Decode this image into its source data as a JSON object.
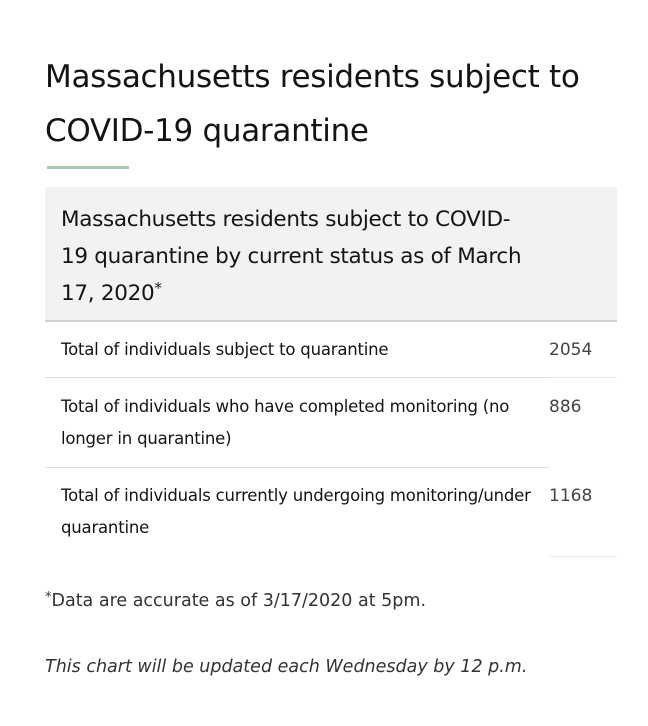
{
  "page": {
    "title": "Massachusetts residents subject to COVID-19 quarantine"
  },
  "table": {
    "caption": "Massachusetts residents subject to COVID-19 quarantine by current status as of March 17, 2020",
    "caption_marker": "*",
    "rows": [
      {
        "label": "Total of individuals subject to quarantine",
        "value": "2054"
      },
      {
        "label": "Total of individuals who have completed monitoring (no longer in quarantine)",
        "value": "886"
      },
      {
        "label": "Total of individuals currently undergoing monitoring/under quarantine",
        "value": "1168"
      }
    ]
  },
  "footnote": {
    "marker": "*",
    "text": "Data are accurate as of 3/17/2020 at 5pm."
  },
  "update_note": "This chart will be updated each Wednesday by 12 p.m.",
  "colors": {
    "accent_rule": "#a9c9b4",
    "caption_background": "#f2f2f2"
  }
}
